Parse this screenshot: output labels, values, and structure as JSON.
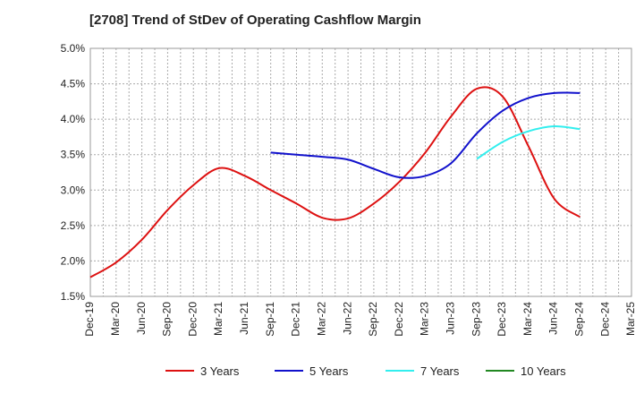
{
  "chart_data": {
    "type": "line",
    "title": "[2708]  Trend of StDev of Operating Cashflow Margin",
    "xlabel": "",
    "ylabel": "",
    "y_tick_labels": [
      "1.5%",
      "2.0%",
      "2.5%",
      "3.0%",
      "3.5%",
      "4.0%",
      "4.5%",
      "5.0%"
    ],
    "y_ticks": [
      1.5,
      2.0,
      2.5,
      3.0,
      3.5,
      4.0,
      4.5,
      5.0
    ],
    "ylim": [
      1.5,
      5.0
    ],
    "x_tick_labels": [
      "Dec-19",
      "Mar-20",
      "Jun-20",
      "Sep-20",
      "Dec-20",
      "Mar-21",
      "Jun-21",
      "Sep-21",
      "Dec-21",
      "Mar-22",
      "Jun-22",
      "Sep-22",
      "Dec-22",
      "Mar-23",
      "Jun-23",
      "Sep-23",
      "Dec-23",
      "Mar-24",
      "Jun-24",
      "Sep-24",
      "Dec-24",
      "Mar-25"
    ],
    "grid": true,
    "legend_position": "bottom",
    "series": [
      {
        "name": "3 Years",
        "color": "#dd1111",
        "x": [
          "Dec-19",
          "Mar-20",
          "Jun-20",
          "Sep-20",
          "Dec-20",
          "Mar-21",
          "Jun-21",
          "Sep-21",
          "Dec-21",
          "Mar-22",
          "Jun-22",
          "Sep-22",
          "Dec-22",
          "Mar-23",
          "Jun-23",
          "Sep-23",
          "Dec-23",
          "Mar-24",
          "Jun-24",
          "Sep-24"
        ],
        "values": [
          1.77,
          1.98,
          2.3,
          2.72,
          3.07,
          3.31,
          3.2,
          3.0,
          2.81,
          2.61,
          2.6,
          2.81,
          3.12,
          3.53,
          4.04,
          4.43,
          4.32,
          3.62,
          2.88,
          2.62
        ]
      },
      {
        "name": "5 Years",
        "color": "#1111cc",
        "x": [
          "Sep-21",
          "Dec-21",
          "Mar-22",
          "Jun-22",
          "Sep-22",
          "Dec-22",
          "Mar-23",
          "Jun-23",
          "Sep-23",
          "Dec-23",
          "Mar-24",
          "Jun-24",
          "Sep-24"
        ],
        "values": [
          3.53,
          3.5,
          3.47,
          3.43,
          3.3,
          3.18,
          3.2,
          3.38,
          3.8,
          4.12,
          4.3,
          4.37,
          4.37
        ]
      },
      {
        "name": "7 Years",
        "color": "#33eeee",
        "x": [
          "Sep-23",
          "Dec-23",
          "Mar-24",
          "Jun-24",
          "Sep-24"
        ],
        "values": [
          3.44,
          3.68,
          3.83,
          3.9,
          3.86
        ]
      },
      {
        "name": "10 Years",
        "color": "#228822",
        "x": [],
        "values": []
      }
    ]
  }
}
